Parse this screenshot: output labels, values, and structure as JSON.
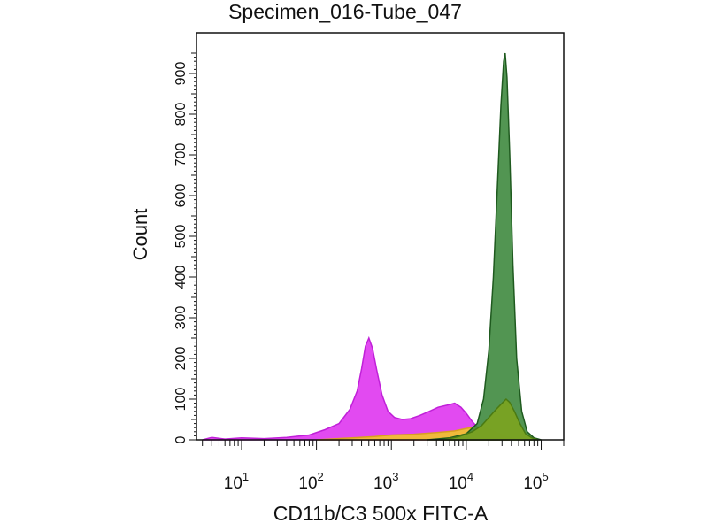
{
  "chart_data": {
    "type": "area",
    "title": "Specimen_016-Tube_047",
    "xlabel": "CD11b/C3 500x FITC-A",
    "ylabel": "Count",
    "x_scale": "log",
    "xlim": [
      2.5,
      200000
    ],
    "ylim": [
      0,
      1000
    ],
    "x_ticks": [
      {
        "value": 10,
        "base": "10",
        "exp": "1"
      },
      {
        "value": 100,
        "base": "10",
        "exp": "2"
      },
      {
        "value": 1000,
        "base": "10",
        "exp": "3"
      },
      {
        "value": 10000,
        "base": "10",
        "exp": "4"
      },
      {
        "value": 100000,
        "base": "10",
        "exp": "5"
      }
    ],
    "y_ticks": [
      "0",
      "100",
      "200",
      "300",
      "400",
      "500",
      "600",
      "700",
      "800",
      "900"
    ],
    "y_tick_values": [
      0,
      100,
      200,
      300,
      400,
      500,
      600,
      700,
      800,
      900
    ],
    "series": [
      {
        "color": "#e040f0",
        "outline": "#c020d8",
        "points": [
          [
            3,
            0
          ],
          [
            4,
            6
          ],
          [
            6,
            2
          ],
          [
            10,
            5
          ],
          [
            20,
            3
          ],
          [
            40,
            6
          ],
          [
            80,
            12
          ],
          [
            130,
            25
          ],
          [
            200,
            40
          ],
          [
            280,
            75
          ],
          [
            350,
            120
          ],
          [
            400,
            175
          ],
          [
            450,
            230
          ],
          [
            500,
            250
          ],
          [
            560,
            225
          ],
          [
            640,
            170
          ],
          [
            750,
            110
          ],
          [
            900,
            70
          ],
          [
            1100,
            55
          ],
          [
            1400,
            50
          ],
          [
            1800,
            52
          ],
          [
            2400,
            60
          ],
          [
            3200,
            70
          ],
          [
            4200,
            80
          ],
          [
            5500,
            85
          ],
          [
            7000,
            90
          ],
          [
            8500,
            80
          ],
          [
            10000,
            65
          ],
          [
            12000,
            45
          ],
          [
            15000,
            25
          ],
          [
            20000,
            12
          ],
          [
            28000,
            4
          ],
          [
            40000,
            0
          ]
        ]
      },
      {
        "color": "#f0c030",
        "outline": "#d8a020",
        "points": [
          [
            100,
            0
          ],
          [
            300,
            5
          ],
          [
            600,
            8
          ],
          [
            1000,
            12
          ],
          [
            2000,
            14
          ],
          [
            4000,
            18
          ],
          [
            7000,
            22
          ],
          [
            10000,
            28
          ],
          [
            14000,
            32
          ],
          [
            18000,
            30
          ],
          [
            24000,
            20
          ],
          [
            32000,
            10
          ],
          [
            45000,
            2
          ],
          [
            60000,
            0
          ]
        ]
      },
      {
        "color": "#3f8a3f",
        "outline": "#1f5a1f",
        "points": [
          [
            3000,
            0
          ],
          [
            6000,
            5
          ],
          [
            10000,
            15
          ],
          [
            14000,
            40
          ],
          [
            17000,
            100
          ],
          [
            20000,
            220
          ],
          [
            23000,
            400
          ],
          [
            26000,
            620
          ],
          [
            29000,
            820
          ],
          [
            31500,
            930
          ],
          [
            33000,
            950
          ],
          [
            35000,
            890
          ],
          [
            38000,
            700
          ],
          [
            42000,
            430
          ],
          [
            47000,
            200
          ],
          [
            55000,
            70
          ],
          [
            65000,
            20
          ],
          [
            80000,
            5
          ],
          [
            100000,
            0
          ]
        ]
      },
      {
        "color": "#7aa222",
        "outline": "#4a7a12",
        "points": [
          [
            5000,
            0
          ],
          [
            8000,
            8
          ],
          [
            12000,
            20
          ],
          [
            16000,
            35
          ],
          [
            20000,
            55
          ],
          [
            25000,
            75
          ],
          [
            30000,
            90
          ],
          [
            34000,
            100
          ],
          [
            38000,
            92
          ],
          [
            44000,
            70
          ],
          [
            52000,
            40
          ],
          [
            62000,
            15
          ],
          [
            75000,
            5
          ],
          [
            90000,
            0
          ]
        ]
      }
    ]
  }
}
